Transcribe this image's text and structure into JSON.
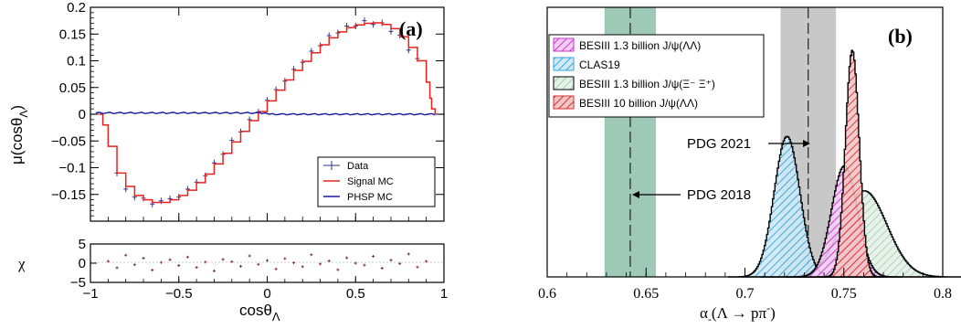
{
  "chart_data": [
    {
      "type": "line",
      "panel_label": "(a)",
      "xlabel": "cosθ",
      "xlabel_sub": "Λ",
      "ylabel": "μ(cosθ",
      "ylabel_sub": "Λ",
      "ylabel_close": ")",
      "xlim": [
        -1,
        1
      ],
      "ylim": [
        -0.2,
        0.2
      ],
      "ytick_labels": [
        "0.2",
        "0.15",
        "0.1",
        "0.05",
        "0",
        "−0.05",
        "−0.1",
        "−0.15"
      ],
      "legend_position": "bottom-right",
      "legend": [
        {
          "name": "Data",
          "color": "#33338c",
          "style": "errorbar"
        },
        {
          "name": "Signal MC",
          "color": "#e8231f",
          "style": "line"
        },
        {
          "name": "PHSP MC",
          "color": "#1a1aa0",
          "style": "line"
        }
      ],
      "series": [
        {
          "name": "Signal MC",
          "color": "#e8231f",
          "x": [
            -0.95,
            -0.93,
            -0.9,
            -0.85,
            -0.8,
            -0.75,
            -0.7,
            -0.65,
            -0.6,
            -0.55,
            -0.5,
            -0.45,
            -0.4,
            -0.35,
            -0.3,
            -0.25,
            -0.2,
            -0.15,
            -0.1,
            -0.05,
            0.0,
            0.05,
            0.1,
            0.15,
            0.2,
            0.25,
            0.3,
            0.35,
            0.4,
            0.45,
            0.5,
            0.55,
            0.6,
            0.65,
            0.7,
            0.75,
            0.8,
            0.85,
            0.9,
            0.92,
            0.93,
            0.95
          ],
          "y": [
            0.0,
            -0.02,
            -0.06,
            -0.11,
            -0.135,
            -0.152,
            -0.16,
            -0.165,
            -0.165,
            -0.16,
            -0.152,
            -0.142,
            -0.128,
            -0.112,
            -0.093,
            -0.073,
            -0.052,
            -0.032,
            -0.012,
            0.005,
            0.025,
            0.045,
            0.064,
            0.082,
            0.099,
            0.115,
            0.13,
            0.143,
            0.154,
            0.162,
            0.167,
            0.17,
            0.171,
            0.168,
            0.16,
            0.145,
            0.125,
            0.1,
            0.06,
            0.03,
            0.01,
            0.0
          ]
        },
        {
          "name": "PHSP MC",
          "color": "#1a1aa0",
          "x": [
            -1,
            1
          ],
          "y": [
            0.0,
            0.0
          ]
        },
        {
          "name": "Data",
          "color": "#33338c",
          "x": [
            -0.85,
            -0.8,
            -0.75,
            -0.7,
            -0.65,
            -0.6,
            -0.55,
            -0.5,
            -0.45,
            -0.4,
            -0.35,
            -0.3,
            -0.25,
            -0.2,
            -0.15,
            -0.1,
            -0.05,
            0.0,
            0.05,
            0.1,
            0.15,
            0.2,
            0.25,
            0.3,
            0.35,
            0.4,
            0.45,
            0.5,
            0.55,
            0.6,
            0.65,
            0.7,
            0.75,
            0.8,
            0.85
          ],
          "y": [
            -0.11,
            -0.14,
            -0.155,
            -0.157,
            -0.168,
            -0.162,
            -0.158,
            -0.155,
            -0.14,
            -0.127,
            -0.115,
            -0.091,
            -0.075,
            -0.049,
            -0.033,
            -0.01,
            0.004,
            0.026,
            0.046,
            0.062,
            0.084,
            0.097,
            0.118,
            0.128,
            0.147,
            0.152,
            0.165,
            0.165,
            0.175,
            0.168,
            0.171,
            0.155,
            0.148,
            0.12,
            0.104
          ]
        }
      ],
      "residual_panel": {
        "ylabel": "χ",
        "ylim": [
          -5,
          5
        ],
        "ytick_labels": [
          "5",
          "0",
          "−5"
        ],
        "xtick_labels": [
          "−1",
          "−0.5",
          "0",
          "0.5",
          "1"
        ],
        "x": [
          -0.9,
          -0.85,
          -0.8,
          -0.75,
          -0.7,
          -0.65,
          -0.6,
          -0.55,
          -0.5,
          -0.45,
          -0.4,
          -0.35,
          -0.3,
          -0.25,
          -0.2,
          -0.15,
          -0.1,
          -0.05,
          0.0,
          0.05,
          0.1,
          0.15,
          0.2,
          0.25,
          0.3,
          0.35,
          0.4,
          0.45,
          0.5,
          0.55,
          0.6,
          0.65,
          0.7,
          0.75,
          0.8,
          0.85,
          0.9
        ],
        "y": [
          0.5,
          -1.2,
          2.1,
          -0.4,
          1.3,
          -1.8,
          0.2,
          0.9,
          -0.6,
          1.6,
          -1.1,
          0.3,
          -2.0,
          1.0,
          0.4,
          -0.8,
          1.9,
          -0.3,
          0.7,
          -1.5,
          1.2,
          0.1,
          -0.9,
          2.2,
          -0.2,
          0.6,
          -1.7,
          1.4,
          0.0,
          -0.5,
          1.8,
          -1.3,
          0.8,
          -0.1,
          2.4,
          -1.0,
          0.5
        ]
      }
    },
    {
      "type": "area",
      "panel_label": "(b)",
      "xlabel": "α",
      "xlabel_sub": "-",
      "xlabel_rest": "(Λ → pπ",
      "xlabel_sup": "-",
      "xlabel_close": ")",
      "xlim": [
        0.6,
        0.8
      ],
      "xtick_labels": [
        "0.6",
        "0.65",
        "0.7",
        "0.75",
        "0.8"
      ],
      "legend_position": "top-left",
      "legend": [
        {
          "name": "BESIII 1.3 billion J/ψ(ΛΛ)",
          "color": "#cc33cc"
        },
        {
          "name": "CLAS19",
          "color": "#33a6d9"
        },
        {
          "name": "BESIII 1.3 billion J/ψ(Ξ⁻ Ξ⁺)",
          "color": "#8fbf9f"
        },
        {
          "name": "BESIII 10 billion J/ψ(ΛΛ)",
          "color": "#d42d2d"
        }
      ],
      "bands": [
        {
          "name": "PDG 2018",
          "center": 0.642,
          "low": 0.629,
          "high": 0.655,
          "color": "#9ec9b6"
        },
        {
          "name": "PDG 2021",
          "center": 0.732,
          "low": 0.718,
          "high": 0.746,
          "color": "#c8c8c8"
        }
      ],
      "annotations": [
        "PDG 2021",
        "PDG 2018"
      ],
      "series": [
        {
          "name": "CLAS19",
          "mean": 0.721,
          "sigma": 0.0065,
          "peak": 0.62,
          "color": "#33a6d9"
        },
        {
          "name": "BESIII 1.3 billion J/ψ(ΛΛ)",
          "mean": 0.75,
          "sigma": 0.0065,
          "peak": 0.49,
          "color": "#cc33cc"
        },
        {
          "name": "BESIII 1.3 billion J/ψ(Ξ⁻ Ξ⁺)",
          "mean": 0.76,
          "sigma": 0.0115,
          "peak": 0.38,
          "color": "#8fbf9f"
        },
        {
          "name": "BESIII 10 billion J/ψ(ΛΛ)",
          "mean": 0.754,
          "sigma": 0.0035,
          "peak": 1.0,
          "color": "#d42d2d"
        }
      ]
    }
  ]
}
